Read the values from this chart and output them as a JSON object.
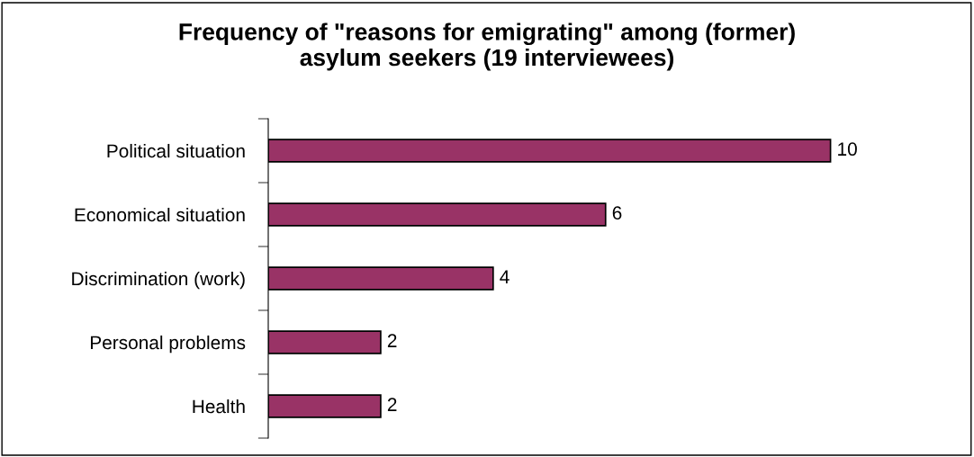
{
  "chart_data": {
    "type": "bar",
    "orientation": "horizontal",
    "title": "Frequency of \"reasons for emigrating\" among (former)\nasylum seekers (19 interviewees)",
    "categories": [
      "Political situation",
      "Economical situation",
      "Discrimination (work)",
      "Personal problems",
      "Health"
    ],
    "values": [
      10,
      6,
      4,
      2,
      2
    ],
    "color": "#993366",
    "data_labels": true,
    "grid": false,
    "legend": false
  }
}
